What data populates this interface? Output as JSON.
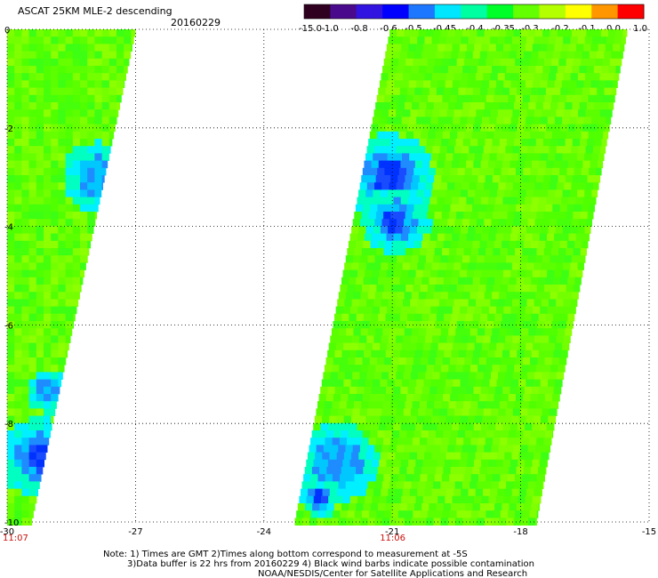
{
  "header": {
    "title": "ASCAT 25KM MLE-2 descending",
    "date": "20160229"
  },
  "colorbar": {
    "labels": [
      "-15.0",
      "-1.0",
      "-0.8",
      "-0.6",
      "-0.5",
      "-0.45",
      "-0.4",
      "-0.35",
      "-0.3",
      "-0.2",
      "-0.1",
      "0.0",
      "1.0"
    ],
    "colors": [
      "#300020",
      "#4a0a8c",
      "#3214e0",
      "#0000ff",
      "#1e78ff",
      "#00e6ff",
      "#00ffa0",
      "#00ff28",
      "#64ff00",
      "#b4ff00",
      "#ffff00",
      "#ff9600",
      "#ff0000"
    ]
  },
  "chart_data": {
    "type": "heatmap",
    "xlim": [
      -30,
      -15
    ],
    "ylim": [
      -10,
      0
    ],
    "x_ticks": [
      -30,
      -27,
      -24,
      -21,
      -18,
      -15
    ],
    "y_ticks": [
      0,
      -2,
      -4,
      -6,
      -8,
      -10
    ],
    "grid": true,
    "swaths": [
      {
        "time": "11:07",
        "time_lon": -30
      },
      {
        "time": "11:06",
        "time_lon": -21
      }
    ]
  },
  "notes": {
    "line1": "Note: 1) Times are GMT 2)Times along bottom correspond to measurement at -5S",
    "line2": "3)Data buffer is 22 hrs from 20160229 4) Black wind barbs indicate possible contamination",
    "line3": "NOAA/NESDIS/Center for Satellite Applications and Research"
  }
}
